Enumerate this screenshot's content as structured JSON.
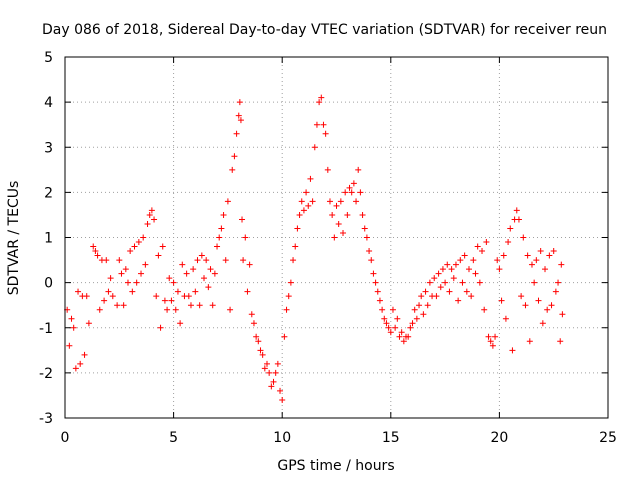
{
  "chart_data": {
    "type": "scatter",
    "title": "Day 086 of 2018, Sidereal Day-to-day VTEC variation (SDTVAR) for receiver reun",
    "xlabel": "GPS time / hours",
    "ylabel": "SDTVAR / TECUs",
    "xlim": [
      0,
      25
    ],
    "ylim": [
      -3,
      5
    ],
    "xticks": [
      "0",
      "5",
      "10",
      "15",
      "20",
      "25"
    ],
    "yticks": [
      "-3",
      "-2",
      "-1",
      "0",
      "1",
      "2",
      "3",
      "4",
      "5"
    ],
    "grid": true,
    "marker": "+",
    "color": "#ff0000",
    "series": [
      {
        "name": "SDTVAR",
        "points": [
          [
            0.1,
            -0.6
          ],
          [
            0.2,
            -1.4
          ],
          [
            0.3,
            -0.8
          ],
          [
            0.4,
            -1.0
          ],
          [
            0.5,
            -1.9
          ],
          [
            0.6,
            -0.2
          ],
          [
            0.7,
            -1.8
          ],
          [
            0.8,
            -0.3
          ],
          [
            0.9,
            -1.6
          ],
          [
            1.0,
            -0.3
          ],
          [
            1.1,
            -0.9
          ],
          [
            1.3,
            0.8
          ],
          [
            1.4,
            0.7
          ],
          [
            1.5,
            0.6
          ],
          [
            1.6,
            -0.6
          ],
          [
            1.7,
            0.5
          ],
          [
            1.8,
            -0.4
          ],
          [
            1.9,
            0.5
          ],
          [
            2.0,
            -0.2
          ],
          [
            2.1,
            0.1
          ],
          [
            2.2,
            -0.3
          ],
          [
            2.4,
            -0.5
          ],
          [
            2.5,
            0.5
          ],
          [
            2.6,
            0.2
          ],
          [
            2.7,
            -0.5
          ],
          [
            2.8,
            0.3
          ],
          [
            2.9,
            0.0
          ],
          [
            3.0,
            0.7
          ],
          [
            3.1,
            -0.2
          ],
          [
            3.2,
            0.8
          ],
          [
            3.3,
            0.0
          ],
          [
            3.4,
            0.9
          ],
          [
            3.5,
            0.2
          ],
          [
            3.6,
            1.0
          ],
          [
            3.7,
            0.4
          ],
          [
            3.8,
            1.3
          ],
          [
            3.9,
            1.5
          ],
          [
            4.0,
            1.6
          ],
          [
            4.1,
            1.4
          ],
          [
            4.2,
            -0.3
          ],
          [
            4.3,
            0.6
          ],
          [
            4.4,
            -1.0
          ],
          [
            4.5,
            0.8
          ],
          [
            4.6,
            -0.4
          ],
          [
            4.7,
            -0.6
          ],
          [
            4.8,
            0.1
          ],
          [
            4.9,
            -0.4
          ],
          [
            5.0,
            0.0
          ],
          [
            5.1,
            -0.6
          ],
          [
            5.2,
            -0.2
          ],
          [
            5.3,
            -0.9
          ],
          [
            5.4,
            0.4
          ],
          [
            5.5,
            -0.3
          ],
          [
            5.6,
            0.2
          ],
          [
            5.7,
            -0.3
          ],
          [
            5.8,
            -0.5
          ],
          [
            5.9,
            0.3
          ],
          [
            6.0,
            -0.2
          ],
          [
            6.1,
            0.5
          ],
          [
            6.2,
            -0.5
          ],
          [
            6.3,
            0.6
          ],
          [
            6.4,
            0.1
          ],
          [
            6.5,
            0.5
          ],
          [
            6.6,
            -0.1
          ],
          [
            6.7,
            0.3
          ],
          [
            6.8,
            -0.5
          ],
          [
            6.9,
            0.2
          ],
          [
            7.0,
            0.8
          ],
          [
            7.1,
            1.0
          ],
          [
            7.2,
            1.2
          ],
          [
            7.3,
            1.5
          ],
          [
            7.4,
            0.5
          ],
          [
            7.5,
            1.8
          ],
          [
            7.6,
            -0.6
          ],
          [
            7.7,
            2.5
          ],
          [
            7.8,
            2.8
          ],
          [
            7.9,
            3.3
          ],
          [
            8.0,
            3.7
          ],
          [
            8.05,
            4.0
          ],
          [
            8.1,
            3.6
          ],
          [
            8.15,
            1.4
          ],
          [
            8.2,
            0.5
          ],
          [
            8.3,
            1.0
          ],
          [
            8.4,
            -0.2
          ],
          [
            8.5,
            0.4
          ],
          [
            8.6,
            -0.7
          ],
          [
            8.7,
            -0.9
          ],
          [
            8.8,
            -1.2
          ],
          [
            8.9,
            -1.3
          ],
          [
            9.0,
            -1.5
          ],
          [
            9.1,
            -1.6
          ],
          [
            9.2,
            -1.9
          ],
          [
            9.3,
            -1.8
          ],
          [
            9.4,
            -2.0
          ],
          [
            9.5,
            -2.3
          ],
          [
            9.6,
            -2.2
          ],
          [
            9.7,
            -2.0
          ],
          [
            9.8,
            -1.8
          ],
          [
            9.9,
            -2.4
          ],
          [
            10.0,
            -2.6
          ],
          [
            10.1,
            -1.2
          ],
          [
            10.2,
            -0.6
          ],
          [
            10.3,
            -0.3
          ],
          [
            10.4,
            0.0
          ],
          [
            10.5,
            0.5
          ],
          [
            10.6,
            0.8
          ],
          [
            10.7,
            1.2
          ],
          [
            10.8,
            1.5
          ],
          [
            10.9,
            1.8
          ],
          [
            11.0,
            1.6
          ],
          [
            11.1,
            2.0
          ],
          [
            11.2,
            1.7
          ],
          [
            11.3,
            2.3
          ],
          [
            11.4,
            1.8
          ],
          [
            11.5,
            3.0
          ],
          [
            11.6,
            3.5
          ],
          [
            11.7,
            4.0
          ],
          [
            11.8,
            4.1
          ],
          [
            11.9,
            3.5
          ],
          [
            12.0,
            3.3
          ],
          [
            12.1,
            2.5
          ],
          [
            12.2,
            1.8
          ],
          [
            12.3,
            1.5
          ],
          [
            12.4,
            1.0
          ],
          [
            12.5,
            1.7
          ],
          [
            12.6,
            1.3
          ],
          [
            12.7,
            1.8
          ],
          [
            12.8,
            1.1
          ],
          [
            12.9,
            2.0
          ],
          [
            13.0,
            1.5
          ],
          [
            13.1,
            2.1
          ],
          [
            13.2,
            2.0
          ],
          [
            13.3,
            2.2
          ],
          [
            13.4,
            1.8
          ],
          [
            13.5,
            2.5
          ],
          [
            13.6,
            2.0
          ],
          [
            13.7,
            1.5
          ],
          [
            13.8,
            1.2
          ],
          [
            13.9,
            1.0
          ],
          [
            14.0,
            0.7
          ],
          [
            14.1,
            0.5
          ],
          [
            14.2,
            0.2
          ],
          [
            14.3,
            0.0
          ],
          [
            14.4,
            -0.2
          ],
          [
            14.5,
            -0.4
          ],
          [
            14.6,
            -0.6
          ],
          [
            14.7,
            -0.8
          ],
          [
            14.8,
            -0.9
          ],
          [
            14.9,
            -1.0
          ],
          [
            15.0,
            -1.1
          ],
          [
            15.1,
            -0.6
          ],
          [
            15.2,
            -1.0
          ],
          [
            15.3,
            -0.8
          ],
          [
            15.4,
            -1.2
          ],
          [
            15.5,
            -1.1
          ],
          [
            15.6,
            -1.3
          ],
          [
            15.7,
            -1.2
          ],
          [
            15.8,
            -1.2
          ],
          [
            15.9,
            -1.0
          ],
          [
            16.0,
            -0.9
          ],
          [
            16.1,
            -0.6
          ],
          [
            16.2,
            -0.8
          ],
          [
            16.3,
            -0.5
          ],
          [
            16.4,
            -0.3
          ],
          [
            16.5,
            -0.7
          ],
          [
            16.6,
            -0.2
          ],
          [
            16.7,
            -0.5
          ],
          [
            16.8,
            0.0
          ],
          [
            16.9,
            -0.3
          ],
          [
            17.0,
            0.1
          ],
          [
            17.1,
            -0.3
          ],
          [
            17.2,
            0.2
          ],
          [
            17.3,
            -0.1
          ],
          [
            17.4,
            0.3
          ],
          [
            17.5,
            0.0
          ],
          [
            17.6,
            0.4
          ],
          [
            17.7,
            -0.2
          ],
          [
            17.8,
            0.3
          ],
          [
            17.9,
            0.1
          ],
          [
            18.0,
            0.4
          ],
          [
            18.1,
            -0.4
          ],
          [
            18.2,
            0.5
          ],
          [
            18.3,
            0.0
          ],
          [
            18.4,
            0.6
          ],
          [
            18.5,
            -0.2
          ],
          [
            18.6,
            0.3
          ],
          [
            18.7,
            -0.3
          ],
          [
            18.8,
            0.5
          ],
          [
            18.9,
            0.2
          ],
          [
            19.0,
            0.8
          ],
          [
            19.1,
            0.0
          ],
          [
            19.2,
            0.7
          ],
          [
            19.3,
            -0.6
          ],
          [
            19.4,
            0.9
          ],
          [
            19.5,
            -1.2
          ],
          [
            19.6,
            -1.3
          ],
          [
            19.7,
            -1.4
          ],
          [
            19.8,
            -1.2
          ],
          [
            19.9,
            0.5
          ],
          [
            20.0,
            0.3
          ],
          [
            20.1,
            -0.4
          ],
          [
            20.2,
            0.6
          ],
          [
            20.3,
            -0.8
          ],
          [
            20.4,
            0.9
          ],
          [
            20.5,
            1.2
          ],
          [
            20.6,
            -1.5
          ],
          [
            20.7,
            1.4
          ],
          [
            20.8,
            1.6
          ],
          [
            20.9,
            1.4
          ],
          [
            21.0,
            -0.3
          ],
          [
            21.1,
            1.0
          ],
          [
            21.2,
            -0.5
          ],
          [
            21.3,
            0.6
          ],
          [
            21.4,
            -1.3
          ],
          [
            21.5,
            0.4
          ],
          [
            21.6,
            0.0
          ],
          [
            21.7,
            0.5
          ],
          [
            21.8,
            -0.4
          ],
          [
            21.9,
            0.7
          ],
          [
            22.0,
            -0.9
          ],
          [
            22.1,
            0.3
          ],
          [
            22.2,
            -0.6
          ],
          [
            22.3,
            0.6
          ],
          [
            22.4,
            -0.5
          ],
          [
            22.5,
            0.7
          ],
          [
            22.6,
            -0.2
          ],
          [
            22.7,
            0.0
          ],
          [
            22.8,
            -1.3
          ],
          [
            22.85,
            0.4
          ],
          [
            22.9,
            -0.7
          ]
        ]
      }
    ]
  }
}
